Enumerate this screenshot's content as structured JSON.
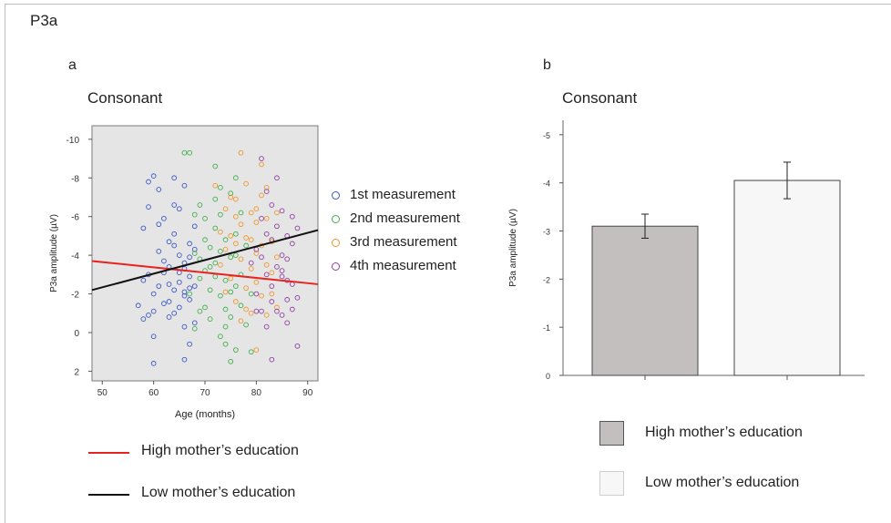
{
  "figure_title": "P3a",
  "panels": {
    "a": {
      "label": "a",
      "subtitle": "Consonant"
    },
    "b": {
      "label": "b",
      "subtitle": "Consonant"
    }
  },
  "scatter_legend": [
    "1st measurement",
    "2nd measurement",
    "3rd measurement",
    "4th measurement"
  ],
  "line_legend": {
    "high": "High mother’s education",
    "low": "Low mother’s education"
  },
  "bar_legend": {
    "high": "High mother’s education",
    "low": "Low mother’s education"
  },
  "colors": {
    "m1": "#3a55c4",
    "m2": "#3fae4a",
    "m3": "#f0962a",
    "m4": "#8e3f9e",
    "high_line": "#e8231f",
    "low_line": "#111111",
    "plot_bg": "#e5e5e5",
    "bar_high": "#c3bfbf",
    "bar_low": "#f7f7f7"
  },
  "chart_data": [
    {
      "type": "scatter",
      "title": "",
      "xlabel": "Age (months)",
      "ylabel": "P3a amplitude (µV)",
      "xlim": [
        48,
        92
      ],
      "ylim": [
        2.5,
        -10.7
      ],
      "y_inverted": true,
      "xticks": [
        50,
        60,
        70,
        80,
        90
      ],
      "yticks": [
        -10,
        -8,
        -6,
        -4,
        -2,
        0,
        2
      ],
      "series": [
        {
          "name": "1st measurement",
          "color": "m1",
          "points": [
            [
              57,
              -1.4
            ],
            [
              58,
              -2.7
            ],
            [
              58,
              -5.4
            ],
            [
              59,
              -6.5
            ],
            [
              59,
              -7.8
            ],
            [
              60,
              -8.1
            ],
            [
              60,
              -1.1
            ],
            [
              61,
              -4.2
            ],
            [
              61,
              -2.4
            ],
            [
              62,
              -3.1
            ],
            [
              62,
              -1.5
            ],
            [
              63,
              -3.4
            ],
            [
              63,
              -0.8
            ],
            [
              64,
              -5.1
            ],
            [
              64,
              -2.2
            ],
            [
              64,
              -4.5
            ],
            [
              65,
              -6.4
            ],
            [
              65,
              -2.6
            ],
            [
              65,
              -1.3
            ],
            [
              66,
              -7.6
            ],
            [
              66,
              -3.6
            ],
            [
              66,
              -2.1
            ],
            [
              66,
              -0.3
            ],
            [
              67,
              -3.9
            ],
            [
              67,
              -2.9
            ],
            [
              67,
              -1.7
            ],
            [
              68,
              -5.5
            ],
            [
              68,
              -2.4
            ],
            [
              58,
              -0.7
            ],
            [
              59,
              -3.0
            ],
            [
              60,
              -2.0
            ],
            [
              61,
              -7.4
            ],
            [
              62,
              -5.9
            ],
            [
              63,
              -4.7
            ],
            [
              64,
              -1.0
            ],
            [
              65,
              -4.0
            ],
            [
              66,
              -3.3
            ],
            [
              67,
              -4.6
            ],
            [
              68,
              -4.3
            ],
            [
              59,
              -0.9
            ],
            [
              60,
              1.6
            ],
            [
              61,
              -5.6
            ],
            [
              62,
              -3.7
            ],
            [
              63,
              -2.5
            ],
            [
              64,
              -8.0
            ],
            [
              65,
              -3.1
            ],
            [
              66,
              -1.9
            ],
            [
              67,
              -2.3
            ],
            [
              68,
              -0.5
            ],
            [
              60,
              0.2
            ],
            [
              64,
              -6.6
            ],
            [
              66,
              1.4
            ],
            [
              67,
              0.6
            ],
            [
              63,
              -1.6
            ]
          ]
        },
        {
          "name": "2nd measurement",
          "color": "m2",
          "points": [
            [
              66,
              -9.3
            ],
            [
              67,
              -9.3
            ],
            [
              68,
              -6.1
            ],
            [
              68,
              -4.1
            ],
            [
              69,
              -6.6
            ],
            [
              69,
              -3.8
            ],
            [
              69,
              -2.8
            ],
            [
              70,
              -5.9
            ],
            [
              70,
              -3.2
            ],
            [
              70,
              -1.3
            ],
            [
              71,
              -4.4
            ],
            [
              71,
              -2.2
            ],
            [
              71,
              -0.7
            ],
            [
              72,
              -8.6
            ],
            [
              72,
              -5.4
            ],
            [
              72,
              -3.6
            ],
            [
              73,
              -6.1
            ],
            [
              73,
              -1.9
            ],
            [
              73,
              0.2
            ],
            [
              74,
              -4.8
            ],
            [
              74,
              -2.7
            ],
            [
              74,
              -1.2
            ],
            [
              75,
              -7.2
            ],
            [
              75,
              -3.9
            ],
            [
              75,
              -0.8
            ],
            [
              76,
              -8.0
            ],
            [
              76,
              -5.1
            ],
            [
              76,
              -2.4
            ],
            [
              77,
              -6.2
            ],
            [
              77,
              -3.0
            ],
            [
              77,
              -1.4
            ],
            [
              78,
              -4.5
            ],
            [
              78,
              -0.4
            ],
            [
              79,
              -2.0
            ],
            [
              79,
              1.0
            ],
            [
              72,
              -6.9
            ],
            [
              73,
              -4.2
            ],
            [
              74,
              0.6
            ],
            [
              75,
              1.5
            ],
            [
              76,
              0.9
            ],
            [
              71,
              -3.4
            ],
            [
              70,
              -4.8
            ],
            [
              69,
              -1.1
            ],
            [
              68,
              -0.2
            ],
            [
              67,
              -2.0
            ],
            [
              72,
              -2.9
            ],
            [
              73,
              -7.5
            ],
            [
              74,
              -0.3
            ],
            [
              75,
              -2.1
            ],
            [
              76,
              -4.0
            ]
          ]
        },
        {
          "name": "3rd measurement",
          "color": "m3",
          "points": [
            [
              72,
              -7.6
            ],
            [
              73,
              -5.2
            ],
            [
              73,
              -3.5
            ],
            [
              74,
              -6.4
            ],
            [
              74,
              -4.3
            ],
            [
              74,
              -2.1
            ],
            [
              75,
              -7.0
            ],
            [
              75,
              -5.0
            ],
            [
              76,
              -6.9
            ],
            [
              76,
              -4.6
            ],
            [
              76,
              -1.6
            ],
            [
              77,
              -9.3
            ],
            [
              77,
              -5.6
            ],
            [
              77,
              -3.8
            ],
            [
              78,
              -7.7
            ],
            [
              78,
              -4.9
            ],
            [
              78,
              -2.3
            ],
            [
              79,
              -6.2
            ],
            [
              79,
              -3.3
            ],
            [
              79,
              -1.0
            ],
            [
              80,
              -5.7
            ],
            [
              80,
              -4.1
            ],
            [
              80,
              -2.6
            ],
            [
              81,
              -7.1
            ],
            [
              81,
              -4.5
            ],
            [
              81,
              -1.9
            ],
            [
              82,
              -5.9
            ],
            [
              82,
              -3.5
            ],
            [
              82,
              -0.9
            ],
            [
              83,
              -4.7
            ],
            [
              83,
              -2.0
            ],
            [
              84,
              -6.2
            ],
            [
              84,
              -3.9
            ],
            [
              84,
              -1.3
            ],
            [
              80,
              0.9
            ],
            [
              81,
              -8.7
            ],
            [
              78,
              -1.2
            ],
            [
              77,
              -0.6
            ],
            [
              83,
              -3.1
            ],
            [
              79,
              -4.8
            ],
            [
              75,
              -2.8
            ],
            [
              76,
              -6.0
            ],
            [
              82,
              -7.5
            ],
            [
              80,
              -6.4
            ]
          ]
        },
        {
          "name": "4th measurement",
          "color": "m4",
          "points": [
            [
              79,
              -3.6
            ],
            [
              80,
              -2.0
            ],
            [
              80,
              -4.3
            ],
            [
              81,
              -9.0
            ],
            [
              81,
              -5.9
            ],
            [
              81,
              -1.1
            ],
            [
              82,
              -7.3
            ],
            [
              82,
              -3.0
            ],
            [
              82,
              -0.3
            ],
            [
              83,
              -4.8
            ],
            [
              83,
              -2.4
            ],
            [
              83,
              -1.6
            ],
            [
              84,
              -8.0
            ],
            [
              84,
              -5.5
            ],
            [
              84,
              -3.4
            ],
            [
              85,
              -6.3
            ],
            [
              85,
              -2.9
            ],
            [
              85,
              -0.9
            ],
            [
              86,
              -5.0
            ],
            [
              86,
              -3.8
            ],
            [
              86,
              -1.7
            ],
            [
              86,
              -0.5
            ],
            [
              87,
              -6.0
            ],
            [
              87,
              -4.6
            ],
            [
              87,
              -2.5
            ],
            [
              88,
              -5.4
            ],
            [
              88,
              -1.8
            ],
            [
              88,
              0.7
            ],
            [
              83,
              1.4
            ],
            [
              85,
              -3.2
            ],
            [
              84,
              -1.1
            ],
            [
              86,
              -2.7
            ],
            [
              82,
              -5.1
            ],
            [
              81,
              -3.9
            ],
            [
              87,
              -1.2
            ],
            [
              83,
              -6.6
            ],
            [
              80,
              -1.1
            ],
            [
              85,
              -4.0
            ]
          ]
        }
      ],
      "fit_lines": [
        {
          "name": "High mother’s education",
          "color": "high_line",
          "x": [
            48,
            92
          ],
          "y": [
            -3.7,
            -2.5
          ]
        },
        {
          "name": "Low mother’s education",
          "color": "low_line",
          "x": [
            48,
            92
          ],
          "y": [
            -2.2,
            -5.3
          ]
        }
      ]
    },
    {
      "type": "bar",
      "title": "",
      "xlabel": "",
      "ylabel": "P3a amplitude (µV)",
      "ylim": [
        0,
        -5.3
      ],
      "y_inverted": true,
      "yticks": [
        0,
        -1,
        -2,
        -3,
        -4,
        -5
      ],
      "categories": [
        "High mother’s education",
        "Low mother’s education"
      ],
      "values": [
        -3.1,
        -4.05
      ],
      "errors": [
        0.25,
        0.38
      ],
      "colors": [
        "bar_high",
        "bar_low"
      ]
    }
  ]
}
